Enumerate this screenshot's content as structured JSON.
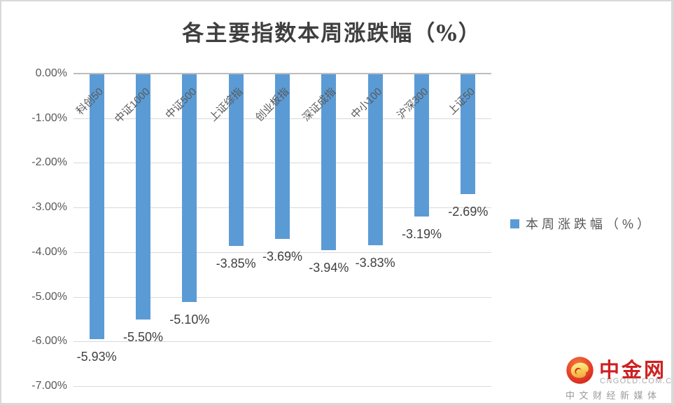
{
  "title": "各主要指数本周涨跌幅（%）",
  "legend": {
    "label": "本周涨跌幅（%）"
  },
  "chart_data": {
    "type": "bar",
    "title": "各主要指数本周涨跌幅（%）",
    "series_name": "本周涨跌幅（%）",
    "categories": [
      "科创50",
      "中证1000",
      "中证500",
      "上证综指",
      "创业板指",
      "深证成指",
      "中小100",
      "沪深300",
      "上证50"
    ],
    "values": [
      -5.93,
      -5.5,
      -5.1,
      -3.85,
      -3.69,
      -3.94,
      -3.83,
      -3.19,
      -2.69
    ],
    "data_labels": [
      "-5.93%",
      "-5.50%",
      "-5.10%",
      "-3.85%",
      "-3.69%",
      "-3.94%",
      "-3.83%",
      "-3.19%",
      "-2.69%"
    ],
    "ytick_labels": [
      "0.00%",
      "-1.00%",
      "-2.00%",
      "-3.00%",
      "-4.00%",
      "-5.00%",
      "-6.00%",
      "-7.00%"
    ],
    "ylim": [
      -7,
      0
    ],
    "ytick_step": 1,
    "grid": true,
    "legend_position": "right",
    "bar_color": "#5B9BD5",
    "gridline_color": "#D9D9D9",
    "xlabel": "",
    "ylabel": ""
  },
  "watermark": {
    "brand": "中金网",
    "domain": "CNGOLD.COM.CN",
    "tagline": "中文财经新媒体",
    "brand_color": "#cf2121",
    "icon_name": "cngold-cloud-logo-icon"
  }
}
